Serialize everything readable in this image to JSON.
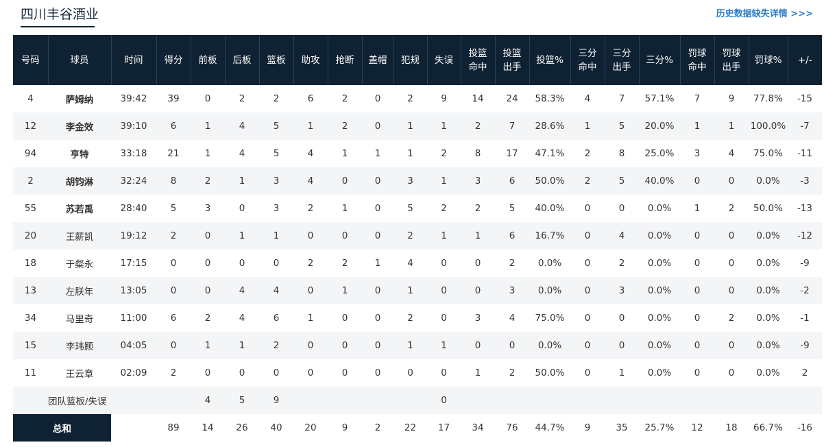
{
  "header": {
    "team_name": "四川丰谷酒业",
    "history_link": "历史数据缺失详情 >>>"
  },
  "colors": {
    "header_bg": "#0f2233",
    "link": "#2f7fc7",
    "stripe": "#f4f5f7"
  },
  "table": {
    "columns": [
      "号码",
      "球员",
      "时间",
      "得分",
      "前板",
      "后板",
      "篮板",
      "助攻",
      "抢断",
      "盖帽",
      "犯规",
      "失误",
      "投篮\n命中",
      "投篮\n出手",
      "投篮%",
      "三分\n命中",
      "三分\n出手",
      "三分%",
      "罚球\n命中",
      "罚球\n出手",
      "罚球%",
      "+/-"
    ],
    "rows": [
      {
        "starter": true,
        "cells": [
          "4",
          "萨姆纳",
          "39:42",
          "39",
          "0",
          "2",
          "2",
          "6",
          "2",
          "0",
          "2",
          "9",
          "14",
          "24",
          "58.3%",
          "4",
          "7",
          "57.1%",
          "7",
          "9",
          "77.8%",
          "-15"
        ]
      },
      {
        "starter": true,
        "cells": [
          "12",
          "李金效",
          "39:10",
          "6",
          "1",
          "4",
          "5",
          "1",
          "2",
          "0",
          "1",
          "1",
          "2",
          "7",
          "28.6%",
          "1",
          "5",
          "20.0%",
          "1",
          "1",
          "100.0%",
          "-7"
        ]
      },
      {
        "starter": true,
        "cells": [
          "94",
          "亨特",
          "33:18",
          "21",
          "1",
          "4",
          "5",
          "4",
          "1",
          "1",
          "1",
          "2",
          "8",
          "17",
          "47.1%",
          "2",
          "8",
          "25.0%",
          "3",
          "4",
          "75.0%",
          "-11"
        ]
      },
      {
        "starter": true,
        "cells": [
          "2",
          "胡钧淋",
          "32:24",
          "8",
          "2",
          "1",
          "3",
          "4",
          "0",
          "0",
          "3",
          "1",
          "3",
          "6",
          "50.0%",
          "2",
          "5",
          "40.0%",
          "0",
          "0",
          "0.0%",
          "-3"
        ]
      },
      {
        "starter": true,
        "cells": [
          "55",
          "苏若禹",
          "28:40",
          "5",
          "3",
          "0",
          "3",
          "2",
          "1",
          "0",
          "5",
          "2",
          "2",
          "5",
          "40.0%",
          "0",
          "0",
          "0.0%",
          "1",
          "2",
          "50.0%",
          "-13"
        ]
      },
      {
        "starter": false,
        "cells": [
          "20",
          "王薪凯",
          "19:12",
          "2",
          "0",
          "1",
          "1",
          "0",
          "0",
          "0",
          "2",
          "1",
          "1",
          "6",
          "16.7%",
          "0",
          "4",
          "0.0%",
          "0",
          "0",
          "0.0%",
          "-12"
        ]
      },
      {
        "starter": false,
        "cells": [
          "18",
          "于粲永",
          "17:15",
          "0",
          "0",
          "0",
          "0",
          "2",
          "2",
          "1",
          "4",
          "0",
          "0",
          "2",
          "0.0%",
          "0",
          "2",
          "0.0%",
          "0",
          "0",
          "0.0%",
          "-9"
        ]
      },
      {
        "starter": false,
        "cells": [
          "13",
          "左朕年",
          "13:05",
          "0",
          "0",
          "4",
          "4",
          "0",
          "1",
          "0",
          "1",
          "0",
          "0",
          "3",
          "0.0%",
          "0",
          "3",
          "0.0%",
          "0",
          "0",
          "0.0%",
          "-2"
        ]
      },
      {
        "starter": false,
        "cells": [
          "34",
          "马里奇",
          "11:00",
          "6",
          "2",
          "4",
          "6",
          "1",
          "0",
          "0",
          "2",
          "0",
          "3",
          "4",
          "75.0%",
          "0",
          "0",
          "0.0%",
          "0",
          "2",
          "0.0%",
          "-1"
        ]
      },
      {
        "starter": false,
        "cells": [
          "15",
          "李玮颢",
          "04:05",
          "0",
          "1",
          "1",
          "2",
          "0",
          "0",
          "0",
          "1",
          "1",
          "0",
          "0",
          "0.0%",
          "0",
          "0",
          "0.0%",
          "0",
          "0",
          "0.0%",
          "-9"
        ]
      },
      {
        "starter": false,
        "cells": [
          "11",
          "王云章",
          "02:09",
          "2",
          "0",
          "0",
          "0",
          "0",
          "0",
          "0",
          "0",
          "0",
          "1",
          "2",
          "50.0%",
          "0",
          "1",
          "0.0%",
          "0",
          "0",
          "0.0%",
          "2"
        ]
      }
    ],
    "team_row": {
      "label": "团队篮板/失误",
      "offensive_rebounds": "4",
      "defensive_rebounds": "5",
      "rebounds": "9",
      "turnovers": "0"
    },
    "total_row": {
      "label": "总和",
      "cells": [
        "89",
        "14",
        "26",
        "40",
        "20",
        "9",
        "2",
        "22",
        "17",
        "34",
        "76",
        "44.7%",
        "9",
        "35",
        "25.7%",
        "12",
        "18",
        "66.7%",
        "-16"
      ]
    }
  }
}
